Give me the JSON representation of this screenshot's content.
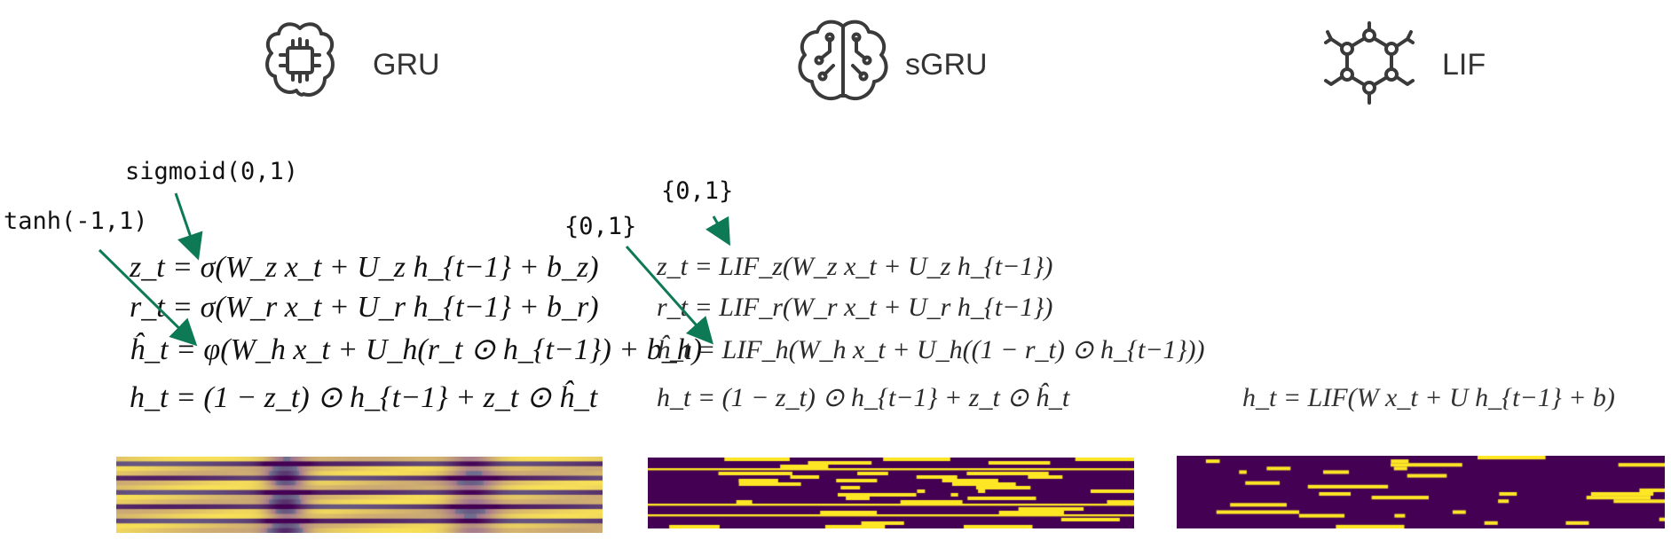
{
  "columns": [
    {
      "id": "gru",
      "title": "GRU",
      "icon": "brain-chip-icon"
    },
    {
      "id": "sgru",
      "title": "sGRU",
      "icon": "brain-circuit-icon"
    },
    {
      "id": "lif",
      "title": "LIF",
      "icon": "molecule-network-icon"
    }
  ],
  "annotations": {
    "gru_sigmoid": "sigmoid(0,1)",
    "gru_tanh": "tanh(-1,1)",
    "sgru_z": "{0,1}",
    "sgru_h": "{0,1}"
  },
  "equations": {
    "gru": [
      "z_t = σ(W_z x_t + U_z h_{t−1} + b_z)",
      "r_t = σ(W_r x_t + U_r h_{t−1} + b_r)",
      "ĥ_t = φ(W_h x_t + U_h(r_t ⊙ h_{t−1}) + b_h)",
      "h_t = (1 − z_t) ⊙ h_{t−1} + z_t ⊙ ĥ_t"
    ],
    "sgru": [
      "z_t = LIF_z(W_z x_t + U_z h_{t−1})",
      "r_t = LIF_r(W_r x_t + U_r h_{t−1})",
      "ĥ_t = LIF_h(W_h x_t + U_h((1 − r_t) ⊙ h_{t−1}))",
      "h_t = (1 − z_t) ⊙ h_{t−1} + z_t ⊙ ĥ_t"
    ],
    "lif": [
      "h_t = LIF(W x_t + U h_{t−1} + b)"
    ]
  },
  "colors": {
    "arrow": "#0e7a55",
    "icon": "#3a3a3a",
    "viridis_dark": "#440154",
    "viridis_yellow": "#fde725"
  }
}
